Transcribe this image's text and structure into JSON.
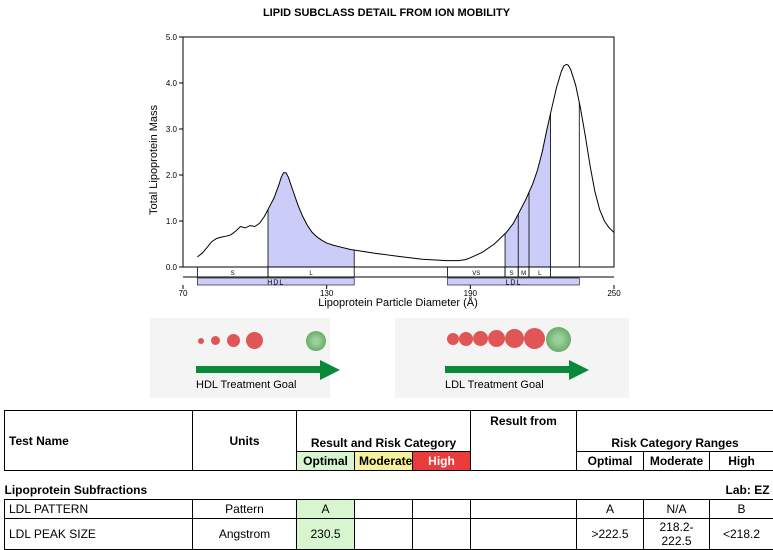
{
  "title": "LIPID SUBCLASS DETAIL FROM ION MOBILITY",
  "chart_data": {
    "type": "area",
    "title": "LIPID SUBCLASS DETAIL FROM ION MOBILITY",
    "xlabel": "Lipoprotein Particle Diameter (Å)",
    "ylabel": "Total Lipoprotein Mass",
    "xlim": [
      70,
      250
    ],
    "ylim": [
      0,
      5.0
    ],
    "x_ticks": [
      "70",
      "130",
      "190",
      "250"
    ],
    "x_tick_values": [
      70,
      130,
      190,
      250
    ],
    "y_ticks": [
      "0.0",
      "1.0",
      "2.0",
      "3.0",
      "4.0",
      "5.0"
    ],
    "y_tick_values": [
      0,
      1,
      2,
      3,
      4,
      5
    ],
    "grid": false,
    "x": [
      76,
      78,
      80,
      82,
      84,
      86,
      88,
      90,
      92,
      94,
      96,
      98,
      100,
      102,
      104,
      106,
      108,
      110,
      111,
      112,
      113,
      114,
      116,
      118,
      120,
      122,
      124,
      126,
      128,
      130,
      133,
      136,
      140,
      145,
      150,
      160,
      170,
      180,
      185,
      188,
      190,
      195,
      200,
      205,
      208,
      210,
      213,
      216,
      218,
      220,
      222,
      224,
      226,
      228,
      229,
      230,
      230.5,
      231,
      232,
      234,
      236,
      238,
      240,
      242,
      244,
      246,
      248,
      249,
      250
    ],
    "y": [
      0.22,
      0.3,
      0.42,
      0.55,
      0.62,
      0.65,
      0.67,
      0.7,
      0.78,
      0.88,
      0.85,
      0.9,
      0.88,
      0.95,
      1.1,
      1.3,
      1.5,
      1.78,
      1.95,
      2.05,
      2.05,
      1.95,
      1.65,
      1.35,
      1.1,
      0.9,
      0.75,
      0.65,
      0.58,
      0.52,
      0.47,
      0.43,
      0.38,
      0.34,
      0.3,
      0.23,
      0.17,
      0.14,
      0.14,
      0.16,
      0.2,
      0.32,
      0.5,
      0.75,
      0.95,
      1.15,
      1.45,
      1.8,
      2.1,
      2.5,
      3.0,
      3.45,
      3.9,
      4.25,
      4.37,
      4.4,
      4.4,
      4.38,
      4.28,
      3.95,
      3.45,
      2.85,
      2.2,
      1.65,
      1.25,
      1.0,
      0.85,
      0.8,
      0.75
    ],
    "shaded_regions": [
      {
        "name": "HDL",
        "from": 105.5,
        "to": 141.5
      },
      {
        "name": "LDL",
        "from": 204.5,
        "to": 223.5
      }
    ],
    "marker_lines": [
      105.5,
      141.5,
      204.5,
      210,
      214.5,
      223.5,
      235.5
    ],
    "band_segments": [
      {
        "label": "S",
        "from": 76,
        "to": 105.5
      },
      {
        "label": "L",
        "from": 105.5,
        "to": 141.5
      },
      {
        "label": "VS",
        "from": 180.5,
        "to": 204.5
      },
      {
        "label": "S",
        "from": 204.5,
        "to": 210
      },
      {
        "label": "M",
        "from": 210,
        "to": 214.5
      },
      {
        "label": "L",
        "from": 214.5,
        "to": 223.5
      }
    ],
    "band_regions": [
      {
        "label": "HDL",
        "from": 76,
        "to": 141.5
      },
      {
        "label": "LDL",
        "from": 180.5,
        "to": 235.5
      }
    ]
  },
  "goals": {
    "hdl_label": "HDL Treatment Goal",
    "ldl_label": "LDL Treatment Goal"
  },
  "table": {
    "headers": {
      "test_name": "Test Name",
      "units": "Units",
      "result_risk": "Result and Risk Category",
      "result_from": "Result from",
      "risk_ranges": "Risk Category Ranges",
      "optimal": "Optimal",
      "moderate": "Moderate",
      "high": "High"
    },
    "section": "Lipoprotein Subfractions",
    "lab": "Lab: EZ",
    "rows": [
      {
        "name": "LDL PATTERN",
        "units": "Pattern",
        "result": "A",
        "optimal": "A",
        "moderate": "N/A",
        "high": "B"
      },
      {
        "name": "LDL PEAK SIZE",
        "units": "Angstrom",
        "result": "230.5",
        "optimal": ">222.5",
        "moderate": "218.2-222.5",
        "high": "<218.2"
      }
    ]
  },
  "colors": {
    "fill": "#ccccf8",
    "optimal": "#d7f5cf",
    "moderate": "#f7f29a",
    "high": "#ec3b3b",
    "arrow": "#0a8a38",
    "dot_red": "#e05555",
    "dot_green": "#4a9a4a"
  }
}
